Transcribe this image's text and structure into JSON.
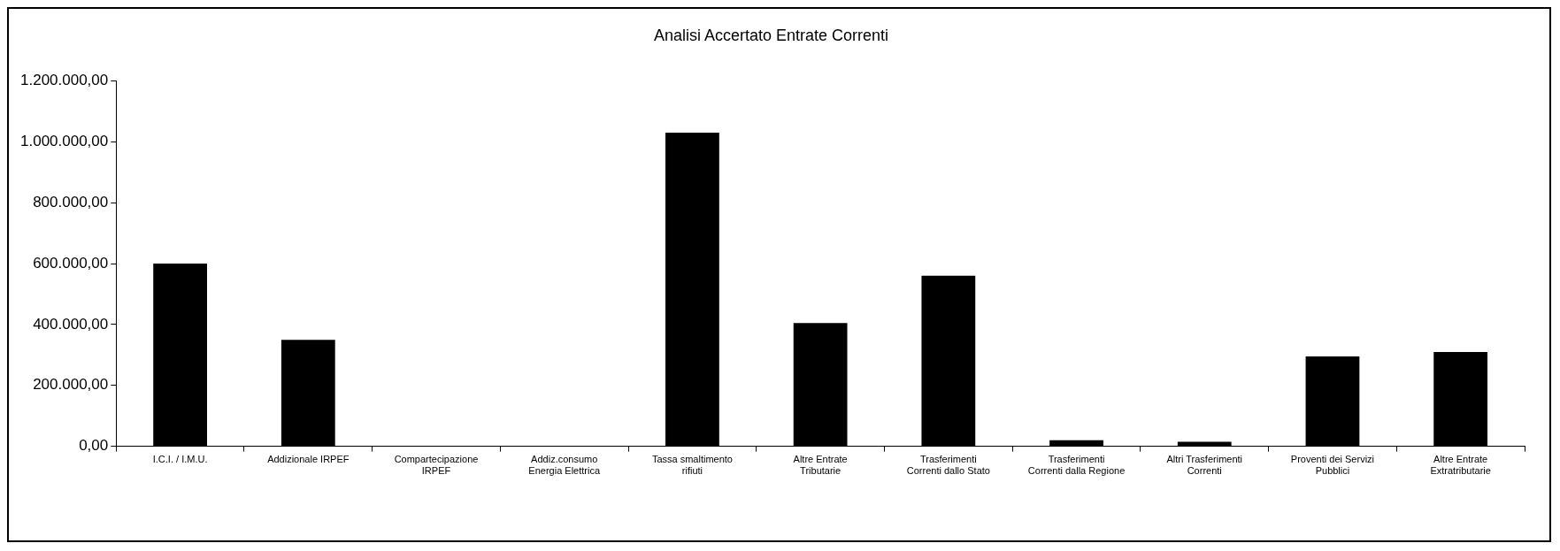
{
  "chart_data": {
    "type": "bar",
    "title": "Analisi Accertato Entrate Correnti",
    "categories": [
      "I.C.I. / I.M.U.",
      "Addizionale IRPEF",
      "Compartecipazione\nIRPEF",
      "Addiz.consumo\nEnergia Elettrica",
      "Tassa smaltimento\nrifiuti",
      "Altre Entrate\nTributarie",
      "Trasferimenti\nCorrenti dallo Stato",
      "Trasferimenti\nCorrenti dalla Regione",
      "Altri Trasferimenti\nCorrenti",
      "Proventi dei Servizi\nPubblici",
      "Altre Entrate\nExtratributarie"
    ],
    "values": [
      600000,
      350000,
      null,
      null,
      1030000,
      405000,
      560000,
      20000,
      15000,
      295000,
      310000
    ],
    "color": "#000000",
    "ylim": [
      0,
      1200000
    ],
    "yticks": [
      {
        "value": 0,
        "label": "0,00"
      },
      {
        "value": 200000,
        "label": "200.000,00"
      },
      {
        "value": 400000,
        "label": "400.000,00"
      },
      {
        "value": 600000,
        "label": "600.000,00"
      },
      {
        "value": 800000,
        "label": "800.000,00"
      },
      {
        "value": 1000000,
        "label": "1.000.000,00"
      },
      {
        "value": 1200000,
        "label": "1.200.000,00"
      }
    ],
    "grid": false,
    "legend": false
  }
}
